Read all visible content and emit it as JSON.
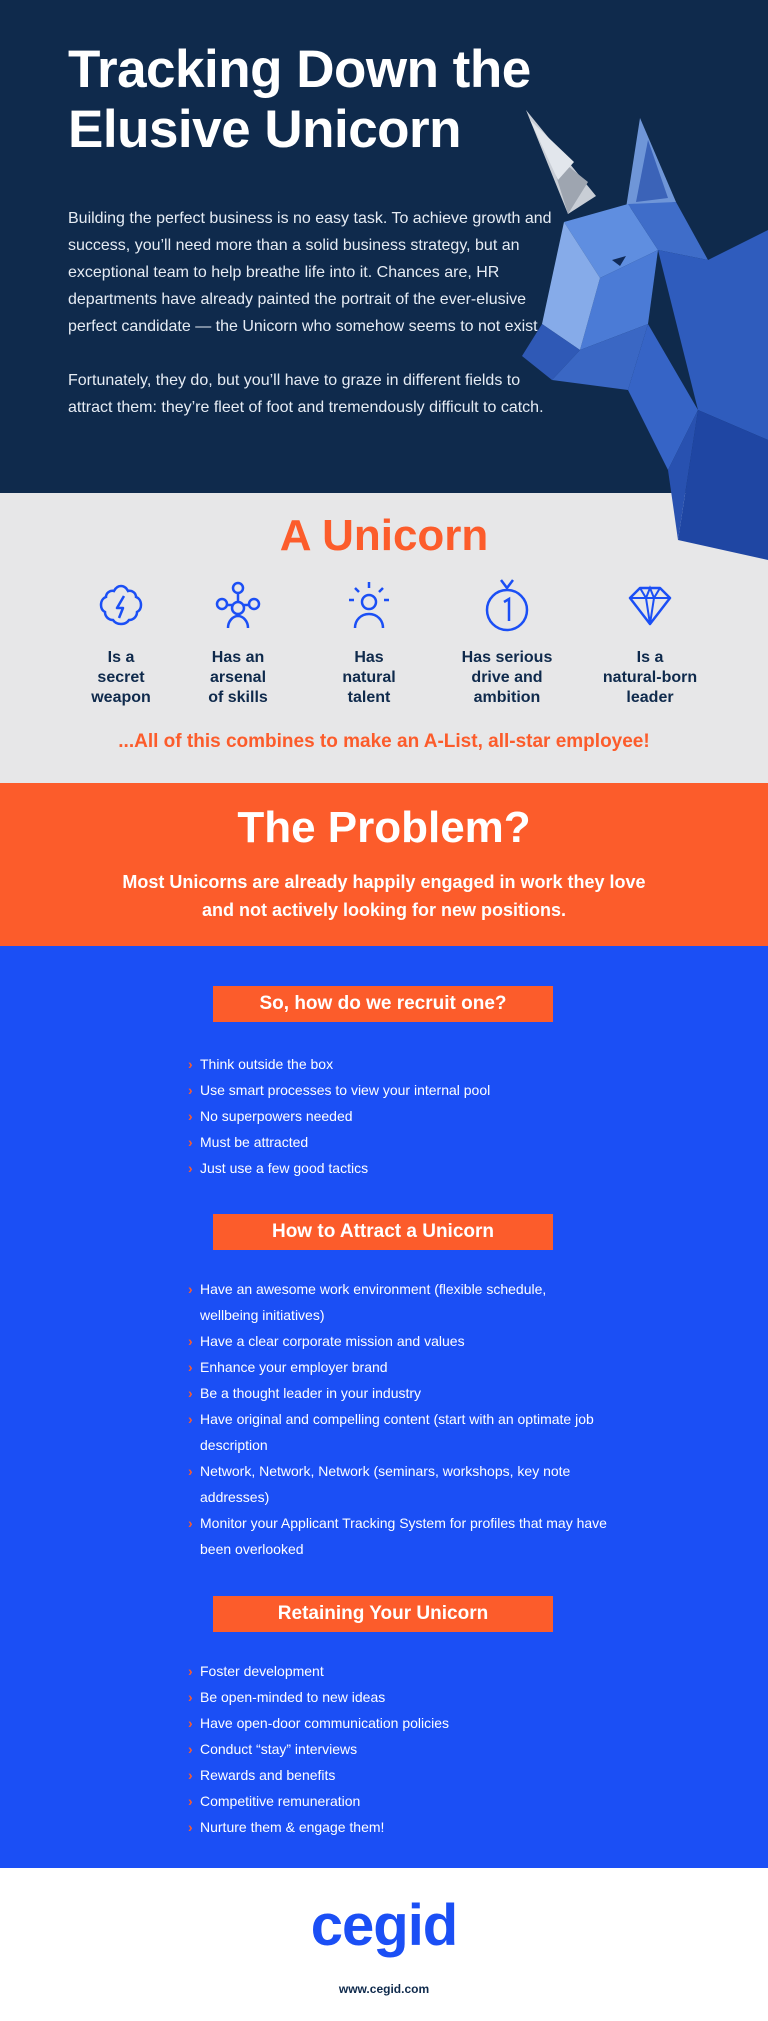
{
  "hero": {
    "title": "Tracking Down the Elusive Unicorn",
    "paragraphs": [
      "Building the perfect business is no easy task. To achieve growth and success, you’ll need more than a solid business strategy, but an exceptional team to help breathe life into it. Chances are, HR departments have already painted the portrait of the ever-elusive perfect candidate — the Unicorn who somehow seems to not exist.",
      "Fortunately, they do, but you’ll have to graze in different fields to attract them: they’re fleet of foot and tremendously difficult to catch."
    ]
  },
  "traits": {
    "heading": "A Unicorn",
    "items": [
      {
        "icon": "brain-icon",
        "label": "Is a\nsecret\nweapon"
      },
      {
        "icon": "network-icon",
        "label": "Has an\narsenal\nof skills"
      },
      {
        "icon": "person-idea-icon",
        "label": "Has\nnatural\ntalent"
      },
      {
        "icon": "medal-icon",
        "label": "Has serious\ndrive and\nambition"
      },
      {
        "icon": "diamond-icon",
        "label": "Is a\nnatural-born\nleader"
      }
    ],
    "tagline": "...All of this combines to make an A-List, all-star employee!"
  },
  "problem": {
    "heading": "The Problem?",
    "body": "Most Unicorns are already happily engaged in work they love and not actively looking for new positions."
  },
  "sections": [
    {
      "heading": "So, how do we recruit one?",
      "items": [
        "Think outside the box",
        "Use smart processes to view your internal pool",
        "No superpowers needed",
        "Must be attracted",
        "Just use a few good tactics"
      ]
    },
    {
      "heading": "How to Attract a Unicorn",
      "items": [
        "Have an awesome work environment (flexible schedule, wellbeing initiatives)",
        "Have a clear corporate mission and values",
        "Enhance your employer brand",
        "Be a thought leader in your industry",
        "Have original and compelling content (start with an optimate job description",
        "Network, Network, Network (seminars, workshops, key note addresses)",
        "Monitor your Applicant Tracking System for profiles that may have been overlooked"
      ]
    },
    {
      "heading": "Retaining Your Unicorn",
      "items": [
        "Foster development",
        "Be open-minded to new ideas",
        "Have open-door communication policies",
        "Conduct “stay” interviews",
        "Rewards and benefits",
        "Competitive remuneration",
        "Nurture them & engage them!"
      ]
    }
  ],
  "footer": {
    "brand": "cegid",
    "url": "www.cegid.com"
  },
  "colors": {
    "navy": "#0f2a4c",
    "orange": "#fc5c2b",
    "blue": "#1b4ff5",
    "grey": "#e7e7e8"
  }
}
